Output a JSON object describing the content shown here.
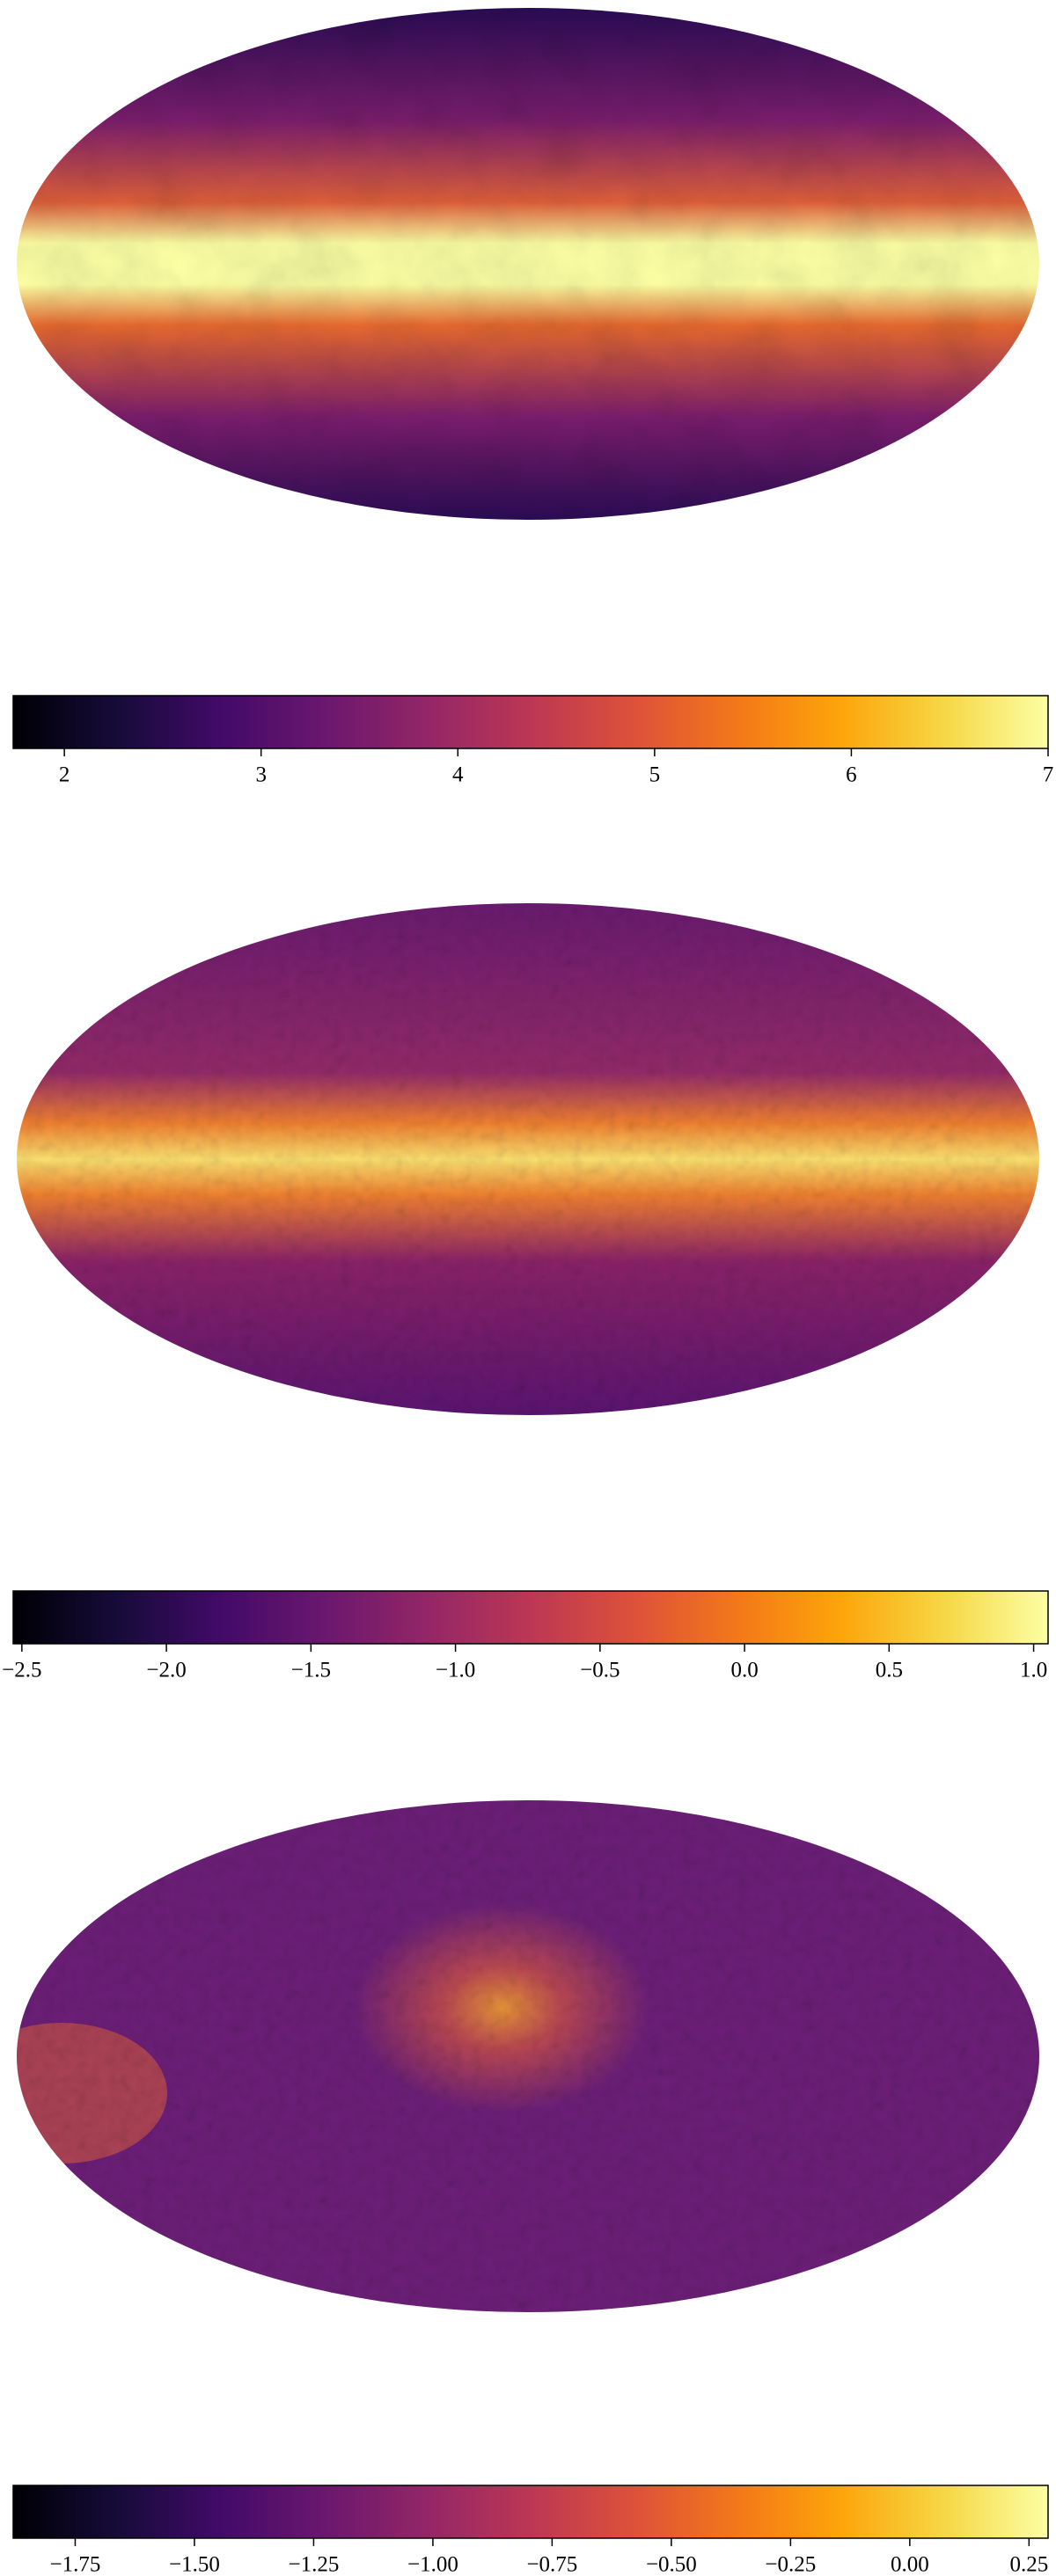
{
  "chart_data": [
    {
      "type": "map",
      "colormap": "inferno",
      "clim": [
        1.74,
        7
      ],
      "ticks": [
        2,
        3,
        4,
        5,
        6,
        7
      ]
    },
    {
      "type": "map",
      "colormap": "inferno",
      "clim": [
        -2.53,
        1.05
      ],
      "ticks": [
        {
          "value": -2.5,
          "label": "−2.5"
        },
        {
          "value": -2.0,
          "label": "−2.0"
        },
        {
          "value": -1.5,
          "label": "−1.5"
        },
        {
          "value": -1.0,
          "label": "−1.0"
        },
        {
          "value": -0.5,
          "label": "−0.5"
        },
        {
          "value": 0.0,
          "label": "0.0"
        },
        {
          "value": 0.5,
          "label": "0.5"
        },
        {
          "value": 1.0,
          "label": "1.0"
        }
      ]
    },
    {
      "type": "map",
      "colormap": "inferno",
      "clim": [
        -1.88,
        0.29
      ],
      "ticks": [
        {
          "value": -1.75,
          "label": "−1.75"
        },
        {
          "value": -1.5,
          "label": "−1.50"
        },
        {
          "value": -1.25,
          "label": "−1.25"
        },
        {
          "value": -1.0,
          "label": "−1.00"
        },
        {
          "value": -0.75,
          "label": "−0.75"
        },
        {
          "value": -0.5,
          "label": "−0.50"
        },
        {
          "value": -0.25,
          "label": "−0.25"
        },
        {
          "value": 0.0,
          "label": "0.00"
        },
        {
          "value": 0.25,
          "label": "0.25"
        }
      ]
    }
  ]
}
